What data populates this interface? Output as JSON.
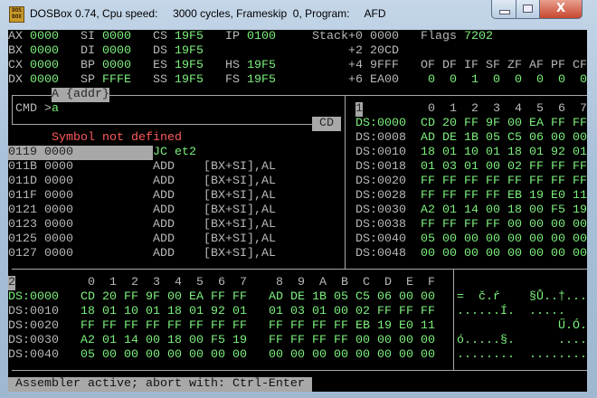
{
  "window": {
    "title": "DOSBox 0.74, Cpu speed:     3000 cycles, Frameskip  0, Program:     AFD",
    "icon": "dosbox-icon",
    "close_label": "X"
  },
  "colors": {
    "text": "#b8b8b8",
    "value": "#7cf07c",
    "error": "#ff5a5a",
    "highlight": "#a8a8a8",
    "background": "#000000"
  },
  "registers": [
    {
      "row": 0,
      "col": 0,
      "name": "AX",
      "value": "0000"
    },
    {
      "row": 1,
      "col": 0,
      "name": "BX",
      "value": "0000"
    },
    {
      "row": 2,
      "col": 0,
      "name": "CX",
      "value": "0000"
    },
    {
      "row": 3,
      "col": 0,
      "name": "DX",
      "value": "0000"
    },
    {
      "row": 0,
      "col": 10,
      "name": "SI",
      "value": "0000"
    },
    {
      "row": 1,
      "col": 10,
      "name": "DI",
      "value": "0000"
    },
    {
      "row": 2,
      "col": 10,
      "name": "BP",
      "value": "0000"
    },
    {
      "row": 3,
      "col": 10,
      "name": "SP",
      "value": "FFFE"
    },
    {
      "row": 0,
      "col": 20,
      "name": "CS",
      "value": "19F5"
    },
    {
      "row": 1,
      "col": 20,
      "name": "DS",
      "value": "19F5"
    },
    {
      "row": 2,
      "col": 20,
      "name": "ES",
      "value": "19F5"
    },
    {
      "row": 3,
      "col": 20,
      "name": "SS",
      "value": "19F5"
    },
    {
      "row": 0,
      "col": 30,
      "name": "IP",
      "value": "0100"
    },
    {
      "row": 2,
      "col": 30,
      "name": "HS",
      "value": "19F5"
    },
    {
      "row": 3,
      "col": 30,
      "name": "FS",
      "value": "19F5"
    }
  ],
  "stack": {
    "label": "Stack",
    "entries": [
      {
        "offset": "+0",
        "value": "0000"
      },
      {
        "offset": "+2",
        "value": "20CD"
      },
      {
        "offset": "+4",
        "value": "9FFF"
      },
      {
        "offset": "+6",
        "value": "EA00"
      }
    ]
  },
  "flags": {
    "label": "Flags",
    "value": "7202",
    "names": [
      "OF",
      "DF",
      "IF",
      "SF",
      "ZF",
      "AF",
      "PF",
      "CF"
    ],
    "values": [
      "0",
      "0",
      "1",
      "0",
      "0",
      "0",
      "0",
      "0"
    ]
  },
  "command": {
    "hint": "A {addr}",
    "prompt": "CMD >",
    "input": "a",
    "segment_marker": "CD"
  },
  "disassembly": {
    "error": "Symbol not defined",
    "rows": [
      {
        "addr": "0119",
        "bytes": "0000",
        "mnemonic": "JC et2",
        "operands": "",
        "current": true
      },
      {
        "addr": "011B",
        "bytes": "0000",
        "mnemonic": "ADD",
        "operands": "[BX+SI],AL"
      },
      {
        "addr": "011D",
        "bytes": "0000",
        "mnemonic": "ADD",
        "operands": "[BX+SI],AL"
      },
      {
        "addr": "011F",
        "bytes": "0000",
        "mnemonic": "ADD",
        "operands": "[BX+SI],AL"
      },
      {
        "addr": "0121",
        "bytes": "0000",
        "mnemonic": "ADD",
        "operands": "[BX+SI],AL"
      },
      {
        "addr": "0123",
        "bytes": "0000",
        "mnemonic": "ADD",
        "operands": "[BX+SI],AL"
      },
      {
        "addr": "0125",
        "bytes": "0000",
        "mnemonic": "ADD",
        "operands": "[BX+SI],AL"
      },
      {
        "addr": "0127",
        "bytes": "0000",
        "mnemonic": "ADD",
        "operands": "[BX+SI],AL"
      }
    ]
  },
  "dump1": {
    "label": "1",
    "columns": [
      "0",
      "1",
      "2",
      "3",
      "4",
      "5",
      "6",
      "7"
    ],
    "rows": [
      {
        "addr": "DS:0000",
        "bytes": [
          "CD",
          "20",
          "FF",
          "9F",
          "00",
          "EA",
          "FF",
          "FF"
        ]
      },
      {
        "addr": "DS:0008",
        "bytes": [
          "AD",
          "DE",
          "1B",
          "05",
          "C5",
          "06",
          "00",
          "00"
        ]
      },
      {
        "addr": "DS:0010",
        "bytes": [
          "18",
          "01",
          "10",
          "01",
          "18",
          "01",
          "92",
          "01"
        ]
      },
      {
        "addr": "DS:0018",
        "bytes": [
          "01",
          "03",
          "01",
          "00",
          "02",
          "FF",
          "FF",
          "FF"
        ]
      },
      {
        "addr": "DS:0020",
        "bytes": [
          "FF",
          "FF",
          "FF",
          "FF",
          "FF",
          "FF",
          "FF",
          "FF"
        ]
      },
      {
        "addr": "DS:0028",
        "bytes": [
          "FF",
          "FF",
          "FF",
          "FF",
          "EB",
          "19",
          "E0",
          "11"
        ]
      },
      {
        "addr": "DS:0030",
        "bytes": [
          "A2",
          "01",
          "14",
          "00",
          "18",
          "00",
          "F5",
          "19"
        ]
      },
      {
        "addr": "DS:0038",
        "bytes": [
          "FF",
          "FF",
          "FF",
          "FF",
          "00",
          "00",
          "00",
          "00"
        ]
      },
      {
        "addr": "DS:0040",
        "bytes": [
          "05",
          "00",
          "00",
          "00",
          "00",
          "00",
          "00",
          "00"
        ]
      },
      {
        "addr": "DS:0048",
        "bytes": [
          "00",
          "00",
          "00",
          "00",
          "00",
          "00",
          "00",
          "00"
        ]
      }
    ]
  },
  "dump2": {
    "label": "2",
    "columns": [
      "0",
      "1",
      "2",
      "3",
      "4",
      "5",
      "6",
      "7",
      "8",
      "9",
      "A",
      "B",
      "C",
      "D",
      "E",
      "F"
    ],
    "rows": [
      {
        "addr": "DS:0000",
        "bytes": [
          "CD",
          "20",
          "FF",
          "9F",
          "00",
          "EA",
          "FF",
          "FF",
          "AD",
          "DE",
          "1B",
          "05",
          "C5",
          "06",
          "00",
          "00"
        ],
        "ascii_lo": "=  č.ŕ  ",
        "ascii_hi": "§Ů..†..."
      },
      {
        "addr": "DS:0010",
        "bytes": [
          "18",
          "01",
          "10",
          "01",
          "18",
          "01",
          "92",
          "01",
          "01",
          "03",
          "01",
          "00",
          "02",
          "FF",
          "FF",
          "FF"
        ],
        "ascii_lo": "......Í.",
        "ascii_hi": ".....   "
      },
      {
        "addr": "DS:0020",
        "bytes": [
          "FF",
          "FF",
          "FF",
          "FF",
          "FF",
          "FF",
          "FF",
          "FF",
          "FF",
          "FF",
          "FF",
          "FF",
          "EB",
          "19",
          "E0",
          "11"
        ],
        "ascii_lo": "        ",
        "ascii_hi": "    Ű.Ó."
      },
      {
        "addr": "DS:0030",
        "bytes": [
          "A2",
          "01",
          "14",
          "00",
          "18",
          "00",
          "F5",
          "19",
          "FF",
          "FF",
          "FF",
          "FF",
          "00",
          "00",
          "00",
          "00"
        ],
        "ascii_lo": "ó.....§.",
        "ascii_hi": "    ...."
      },
      {
        "addr": "DS:0040",
        "bytes": [
          "05",
          "00",
          "00",
          "00",
          "00",
          "00",
          "00",
          "00",
          "00",
          "00",
          "00",
          "00",
          "00",
          "00",
          "00",
          "00"
        ],
        "ascii_lo": "........",
        "ascii_hi": "........"
      }
    ]
  },
  "status": "Assembler active; abort with: Ctrl-Enter"
}
